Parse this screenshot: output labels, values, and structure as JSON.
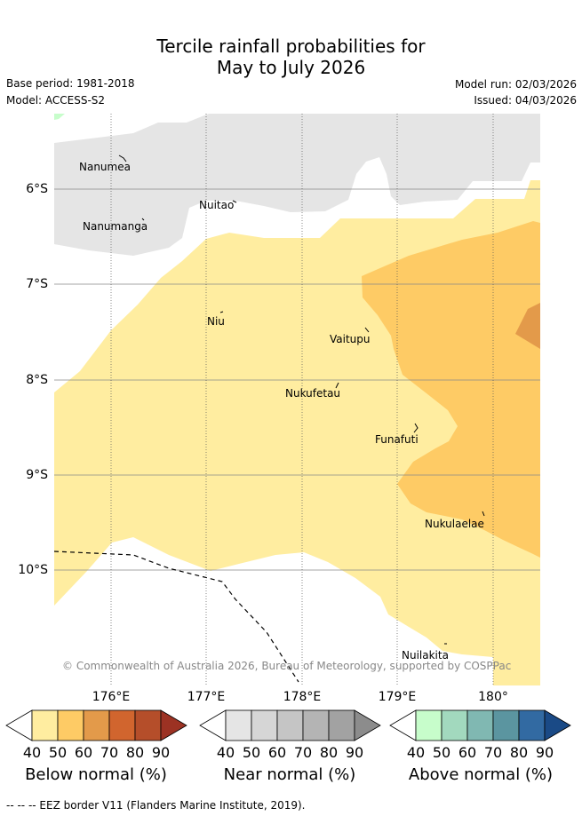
{
  "title": {
    "line1": "Tercile rainfall probabilities for",
    "line2": "May to July 2026"
  },
  "meta": {
    "base_period": "Base period: 1981-2018",
    "model": "Model: ACCESS-S2",
    "model_run": "Model run: 02/03/2026",
    "issued": "Issued: 04/03/2026"
  },
  "axes": {
    "lat_labels": [
      "6°S",
      "7°S",
      "8°S",
      "9°S",
      "10°S"
    ],
    "lon_labels": [
      "176°E",
      "177°E",
      "178°E",
      "179°E",
      "180°"
    ]
  },
  "places": [
    {
      "name": "Nanumea"
    },
    {
      "name": "Nuitao"
    },
    {
      "name": "Nanumanga"
    },
    {
      "name": "Niu"
    },
    {
      "name": "Vaitupu"
    },
    {
      "name": "Nukufetau"
    },
    {
      "name": "Funafuti"
    },
    {
      "name": "Nukulaelae"
    },
    {
      "name": "Nuilakita"
    }
  ],
  "copyright": "© Commonwealth of Australia 2026, Bureau of Meteorology, supported by COSPPac",
  "colorbars": [
    {
      "title": "Below normal (%)",
      "ticks": [
        "40",
        "50",
        "60",
        "70",
        "80",
        "90"
      ],
      "colors": [
        "#ffeda0",
        "#fecb65",
        "#e39a4a",
        "#d1652e",
        "#b54e2a",
        "#9c3223"
      ]
    },
    {
      "title": "Near normal (%)",
      "ticks": [
        "40",
        "50",
        "60",
        "70",
        "80",
        "90"
      ],
      "colors": [
        "#e5e5e5",
        "#d6d6d6",
        "#c5c5c5",
        "#b4b4b4",
        "#a2a2a2",
        "#8c8c8c"
      ]
    },
    {
      "title": "Above normal (%)",
      "ticks": [
        "40",
        "50",
        "60",
        "70",
        "80",
        "90"
      ],
      "colors": [
        "#c7fdcb",
        "#a2d9be",
        "#80b8b2",
        "#5b95a0",
        "#326aa2",
        "#1a4a86"
      ]
    }
  ],
  "footer": "--  --  -- EEZ border V11 (Flanders Marine Institute, 2019).",
  "colors": {
    "below_40_50": "#ffeda0",
    "below_50_60": "#fecb65",
    "below_60_70": "#e39a4a",
    "near_40_50": "#e5e5e5",
    "above_40_50": "#c7fdcb"
  }
}
